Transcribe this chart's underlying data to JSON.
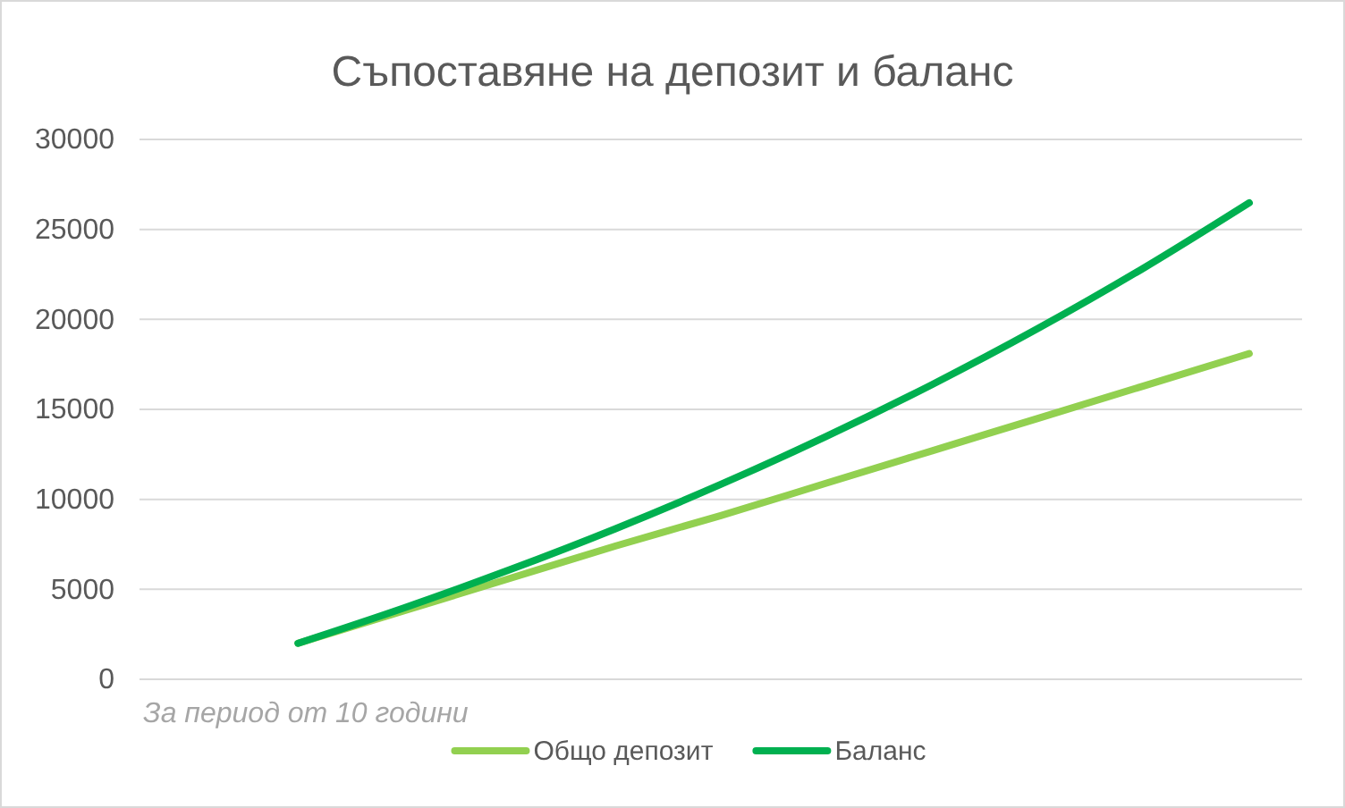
{
  "chart_data": {
    "type": "line",
    "title": "Съпоставяне на депозит и баланс",
    "xlabel": "За период от 10 години",
    "categories": [
      null,
      null,
      null,
      null,
      null,
      null,
      null,
      null,
      null,
      null,
      null
    ],
    "series": [
      {
        "name": "Общо депозит",
        "color": "#92d050",
        "values": [
          null,
          2000,
          3800,
          5600,
          7400,
          9100,
          10900,
          12700,
          14500,
          16300,
          18100
        ]
      },
      {
        "name": "Баланс",
        "color": "#00b050",
        "values": [
          null,
          2000,
          3960,
          6080,
          8360,
          10830,
          13500,
          16380,
          19490,
          22850,
          26480
        ]
      }
    ],
    "ylim": [
      0,
      30000
    ],
    "yticks": [
      0,
      5000,
      10000,
      15000,
      20000,
      25000,
      30000
    ],
    "grid": "y",
    "legend": "bottom"
  }
}
